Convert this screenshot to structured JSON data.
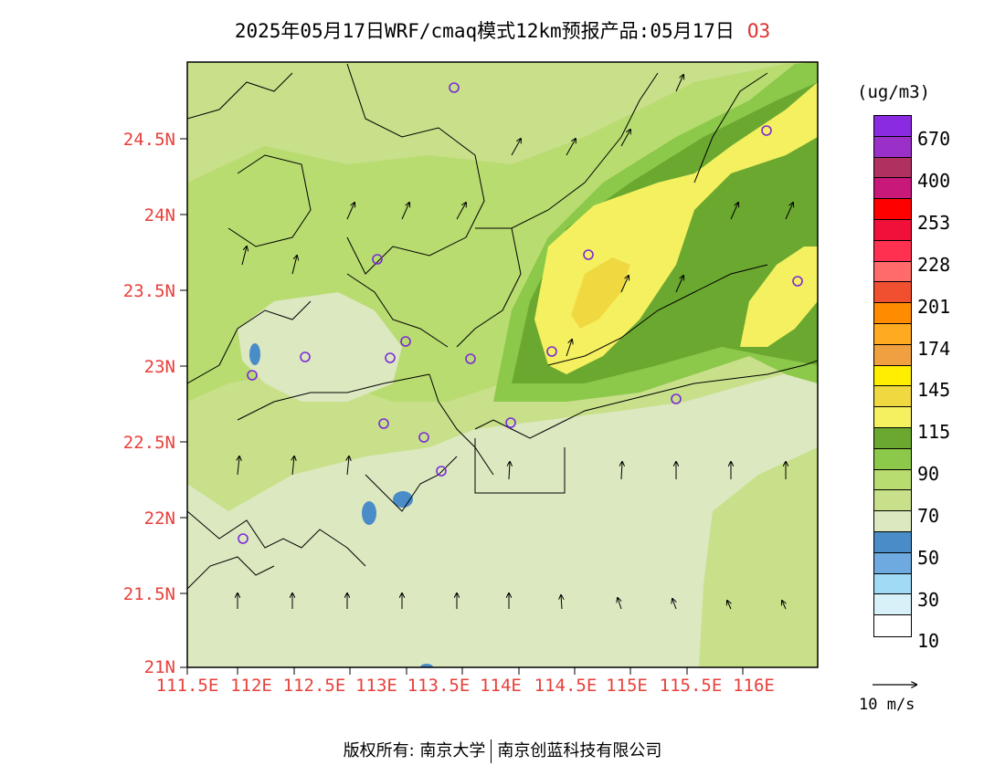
{
  "title": {
    "main": "2025年05月17日WRF/cmaq模式12km预报产品:05月17日",
    "pollutant": "O3"
  },
  "axes": {
    "lat_labels": [
      "24.5N",
      "24N",
      "23.5N",
      "23N",
      "22.5N",
      "22N",
      "21.5N",
      "21N"
    ],
    "lon_labels": [
      "111.5E",
      "112E",
      "112.5E",
      "113E",
      "113.5E",
      "114E",
      "114.5E",
      "115E",
      "115.5E",
      "116E"
    ]
  },
  "colorbar": {
    "unit": "(ug/m3)",
    "colors": [
      "#8a2be2",
      "#9b30c8",
      "#b03060",
      "#c8187a",
      "#ff0000",
      "#f0103a",
      "#ff3050",
      "#ff6a6a",
      "#f05030",
      "#ff8c00",
      "#ffaa20",
      "#f0a040",
      "#ffee00",
      "#f0d840",
      "#f4f060",
      "#6aa830",
      "#8cc84a",
      "#b8dc70",
      "#c8e08a",
      "#dce8c0",
      "#4a8cc8",
      "#6eaae0",
      "#a0daf4",
      "#d8f0f8",
      "#ffffff"
    ],
    "labels": [
      "670",
      "400",
      "253",
      "228",
      "201",
      "174",
      "145",
      "115",
      "90",
      "70",
      "50",
      "30",
      "10"
    ]
  },
  "vector_ref": "10 m/s",
  "footer": {
    "left": "版权所有: 南京大学",
    "right": "南京创蓝科技有限公司"
  }
}
